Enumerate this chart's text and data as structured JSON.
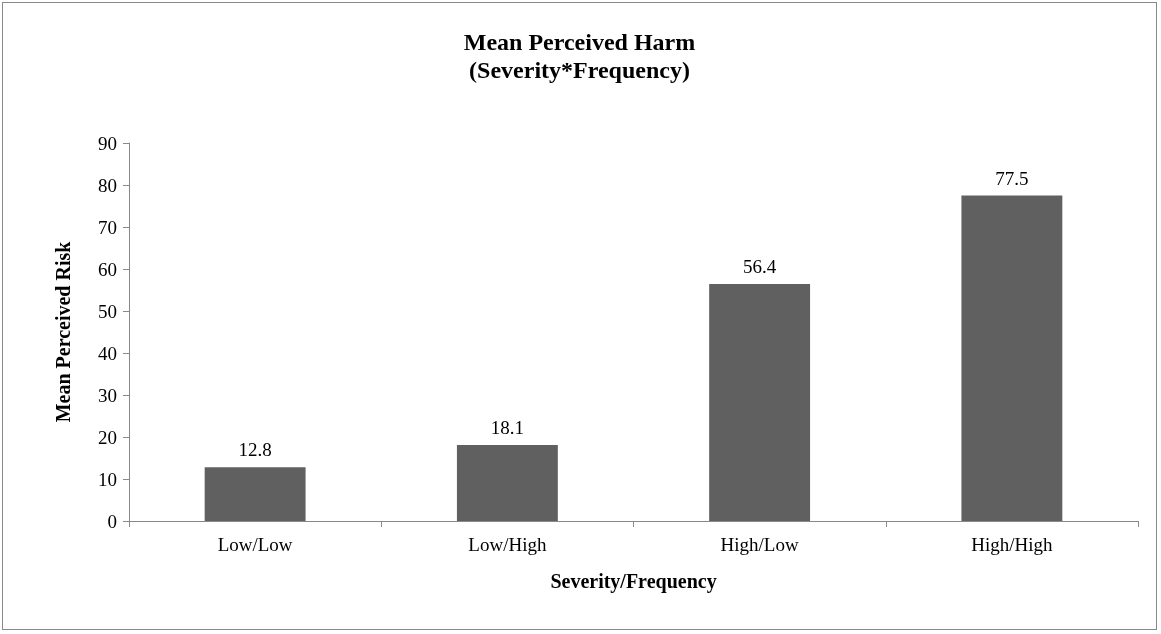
{
  "chart_data": {
    "type": "bar",
    "title": "Mean Perceived Harm",
    "subtitle": "(Severity*Frequency)",
    "xlabel": "Severity/Frequency",
    "ylabel": "Mean Perceived Risk",
    "categories": [
      "Low/Low",
      "Low/High",
      "High/Low",
      "High/High"
    ],
    "values": [
      12.8,
      18.1,
      56.4,
      77.5
    ],
    "color": "#606060",
    "ylim": [
      0,
      90
    ],
    "yticks": [
      0,
      10,
      20,
      30,
      40,
      50,
      60,
      70,
      80,
      90
    ],
    "grid": false,
    "data_labels": true
  }
}
